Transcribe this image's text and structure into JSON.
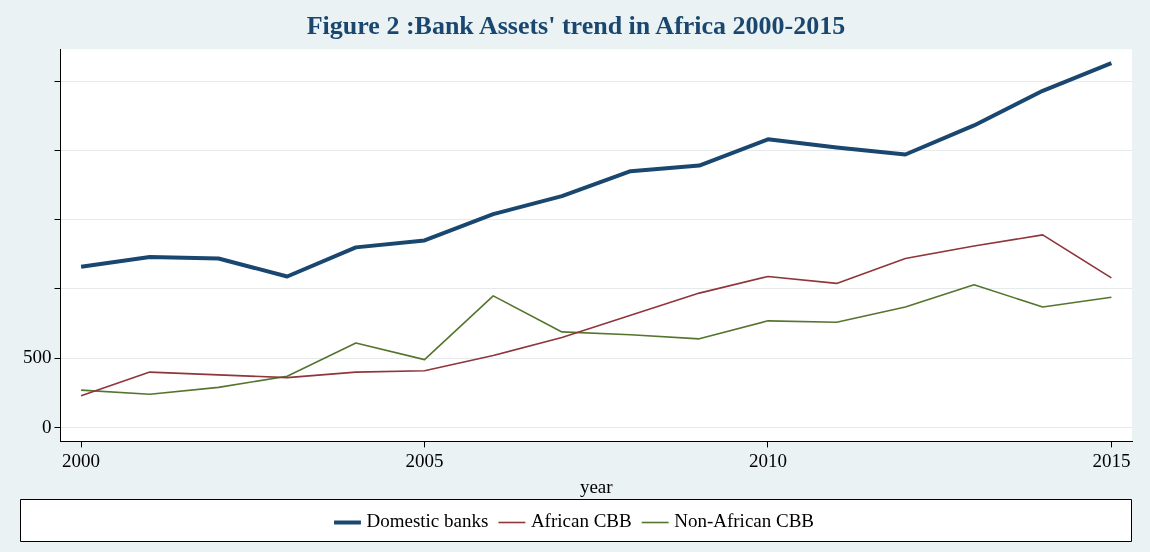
{
  "chart_data": {
    "type": "line",
    "title": "Figure 2 :Bank Assets' trend in Africa 2000-2015",
    "xlabel": "year",
    "x": [
      2000,
      2001,
      2002,
      2003,
      2004,
      2005,
      2006,
      2007,
      2008,
      2009,
      2010,
      2011,
      2012,
      2013,
      2014,
      2015
    ],
    "series": [
      {
        "name": "Domestic banks",
        "color": "#1a476f",
        "values": [
          1160,
          1230,
          1220,
          1090,
          1300,
          1350,
          1540,
          1670,
          1850,
          1890,
          2080,
          2020,
          1970,
          2180,
          2430,
          2630
        ]
      },
      {
        "name": "African CBB",
        "color": "#90353b",
        "values": [
          230,
          400,
          380,
          360,
          400,
          410,
          520,
          650,
          810,
          970,
          1090,
          1040,
          1220,
          1310,
          1390,
          1080
        ]
      },
      {
        "name": "Non-African CBB",
        "color": "#55752f",
        "values": [
          270,
          240,
          290,
          370,
          610,
          490,
          950,
          690,
          670,
          640,
          770,
          760,
          870,
          1030,
          870,
          940
        ]
      }
    ],
    "xlim": [
      1999.7,
      2015.3
    ],
    "xticks": [
      2000,
      2005,
      2010,
      2015
    ],
    "ylim": [
      -100,
      2730
    ],
    "yticks": [
      0,
      500,
      {
        "value": 1000,
        "label": null
      },
      {
        "value": 1500,
        "label": null
      },
      {
        "value": 2000,
        "label": null
      },
      {
        "value": 2500,
        "label": null
      }
    ],
    "grid": "y",
    "legend": "bottom",
    "marker": "none"
  }
}
